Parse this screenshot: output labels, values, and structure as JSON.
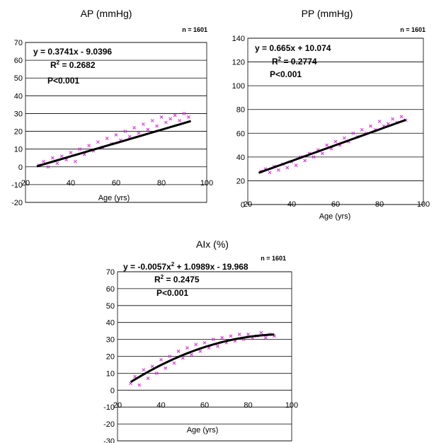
{
  "chart_data": [
    {
      "type": "scatter",
      "title": "AP (mmHg)",
      "n_label": "n = 1601",
      "xlabel": "Age (yrs)",
      "ylabel": "",
      "xlim": [
        20,
        100
      ],
      "ylim": [
        -20,
        70
      ],
      "xticks": [
        "20",
        "40",
        "60",
        "80",
        "100"
      ],
      "yticks": [
        "-20",
        "-10",
        "0",
        "10",
        "20",
        "30",
        "40",
        "50",
        "60",
        "70"
      ],
      "grid": "horizontal",
      "marker_color": "#e040e0",
      "fit": {
        "kind": "linear",
        "coef": [
          0.3741,
          -9.0396
        ],
        "x_range": [
          25,
          93
        ]
      },
      "annotations": {
        "equation": "y = 0.3741x - 9.0396",
        "r2_label": "R",
        "r2_sup": "2",
        "r2_value": " = 0.2682",
        "p": "P<0.001"
      },
      "series": [
        {
          "x": [
            26,
            28,
            30,
            32,
            34,
            36,
            38,
            40,
            42,
            44,
            46,
            48,
            50,
            52,
            54,
            56,
            58,
            60,
            62,
            64,
            66,
            68,
            70,
            72,
            74,
            76,
            78,
            80,
            82,
            84,
            86,
            88,
            90,
            92
          ],
          "y": [
            1,
            3,
            0,
            5,
            2,
            6,
            4,
            8,
            3,
            10,
            7,
            12,
            9,
            14,
            11,
            16,
            13,
            18,
            15,
            20,
            17,
            22,
            19,
            24,
            21,
            26,
            23,
            28,
            25,
            27,
            29,
            26,
            30,
            28
          ]
        }
      ]
    },
    {
      "type": "scatter",
      "title": "PP (mmHg)",
      "n_label": "n = 1601",
      "xlabel": "Age (yrs)",
      "ylabel": "",
      "xlim": [
        20,
        100
      ],
      "ylim": [
        0,
        140
      ],
      "xticks": [
        "20",
        "40",
        "60",
        "80",
        "100"
      ],
      "yticks": [
        "0",
        "20",
        "40",
        "60",
        "80",
        "100",
        "120",
        "140"
      ],
      "grid": "horizontal",
      "marker_color": "#e040e0",
      "fit": {
        "kind": "linear",
        "coef": [
          0.665,
          10.074
        ],
        "x_range": [
          25,
          92
        ]
      },
      "annotations": {
        "equation": "y = 0.665x + 10.074",
        "r2_label": "R",
        "r2_sup": "2",
        "r2_value": " = 0.2774",
        "p": "P<0.001"
      },
      "series": [
        {
          "x": [
            26,
            28,
            30,
            32,
            34,
            36,
            38,
            40,
            42,
            44,
            46,
            48,
            50,
            52,
            54,
            56,
            58,
            60,
            62,
            64,
            66,
            68,
            70,
            72,
            74,
            76,
            78,
            80,
            82,
            84,
            86,
            88,
            90,
            92
          ],
          "y": [
            28,
            30,
            27,
            32,
            29,
            34,
            31,
            36,
            33,
            40,
            37,
            43,
            40,
            46,
            43,
            50,
            47,
            53,
            50,
            56,
            53,
            60,
            57,
            63,
            60,
            66,
            63,
            70,
            66,
            68,
            72,
            69,
            74,
            71
          ]
        }
      ]
    },
    {
      "type": "scatter",
      "title": "AIx (%)",
      "n_label": "n = 1601",
      "xlabel": "Age (yrs)",
      "ylabel": "",
      "xlim": [
        20,
        100
      ],
      "ylim": [
        -30,
        70
      ],
      "xticks": [
        "20",
        "40",
        "60",
        "80",
        "100"
      ],
      "yticks": [
        "-30",
        "-20",
        "-10",
        "0",
        "10",
        "20",
        "30",
        "40",
        "50",
        "60",
        "70"
      ],
      "grid": "horizontal",
      "marker_color": "#e040e0",
      "fit": {
        "kind": "quadratic",
        "coef": [
          -0.0057,
          1.0989,
          -19.968
        ],
        "x_range": [
          26,
          92
        ]
      },
      "annotations": {
        "equation_main": "y = -0.0057x",
        "equation_sup": "2",
        "equation_rest": " + 1.0989x - 19.968",
        "r2_label": "R",
        "r2_sup": "2",
        "r2_value": " = 0.2475",
        "p": "P<0.001"
      },
      "series": [
        {
          "x": [
            26,
            28,
            30,
            32,
            34,
            36,
            38,
            40,
            42,
            44,
            46,
            48,
            50,
            52,
            54,
            56,
            58,
            60,
            62,
            64,
            66,
            68,
            70,
            72,
            74,
            76,
            78,
            80,
            82,
            84,
            86,
            88,
            90,
            92
          ],
          "y": [
            4,
            8,
            3,
            12,
            7,
            14,
            10,
            18,
            13,
            20,
            16,
            23,
            19,
            25,
            21,
            27,
            23,
            28,
            25,
            30,
            26,
            31,
            28,
            32,
            29,
            33,
            30,
            33,
            31,
            32,
            34,
            31,
            33,
            32
          ]
        }
      ]
    }
  ]
}
